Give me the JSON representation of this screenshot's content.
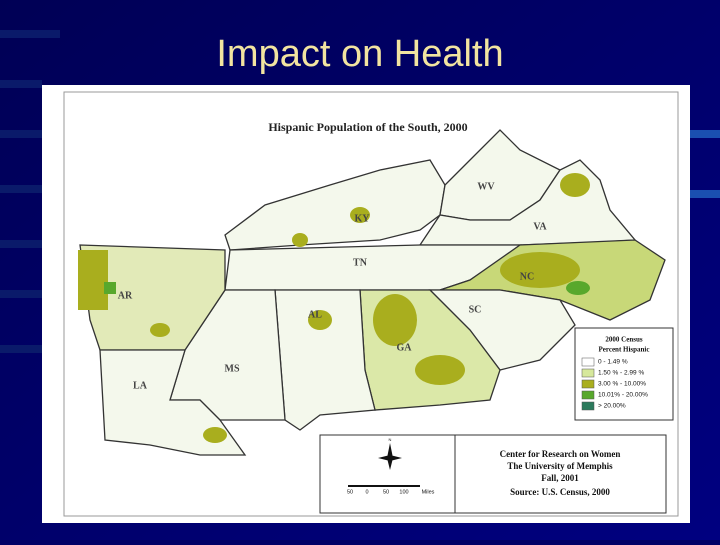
{
  "title": "Impact on Health",
  "map": {
    "title": "Hispanic Population of the South, 2000",
    "state_labels": [
      "KY",
      "WV",
      "VA",
      "TN",
      "NC",
      "AR",
      "AL",
      "SC",
      "GA",
      "MS",
      "LA"
    ],
    "legend": {
      "title": [
        "2000 Census",
        "Percent Hispanic"
      ],
      "items": [
        {
          "label": "0 - 1.49 %",
          "color": "#ffffff"
        },
        {
          "label": "1.50 % - 2.99 %",
          "color": "#d6e89c"
        },
        {
          "label": "3.00 % - 10.00%",
          "color": "#a9ae1e"
        },
        {
          "label": "10.01% - 20.00%",
          "color": "#58a82c"
        },
        {
          "label": "> 20.00%",
          "color": "#2b7a5c"
        }
      ]
    },
    "credits": [
      "Center for Research on Women",
      "The University of Memphis",
      "Fall, 2001",
      "Source: U.S. Census, 2000"
    ],
    "scale": [
      "50",
      "0",
      "50",
      "100",
      "Miles"
    ],
    "north": "N"
  }
}
